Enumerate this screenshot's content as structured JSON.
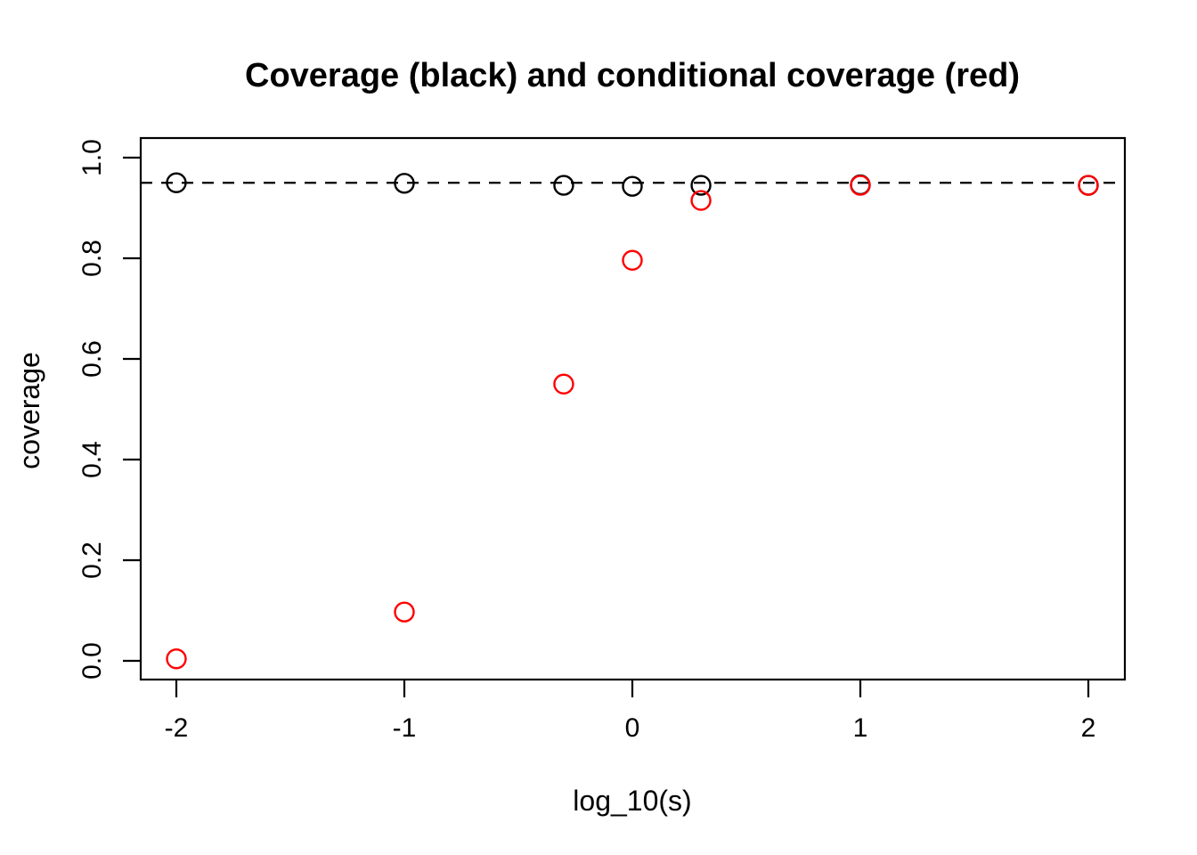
{
  "chart_data": {
    "type": "scatter",
    "title": "Coverage (black) and conditional coverage (red)",
    "xlabel": "log_10(s)",
    "ylabel": "coverage",
    "x_ticks": [
      {
        "label": "-2",
        "value": -2
      },
      {
        "label": "-1",
        "value": -1
      },
      {
        "label": "0",
        "value": 0
      },
      {
        "label": "1",
        "value": 1
      },
      {
        "label": "2",
        "value": 2
      }
    ],
    "y_ticks": [
      {
        "label": "0.0",
        "value": 0.0
      },
      {
        "label": "0.2",
        "value": 0.2
      },
      {
        "label": "0.4",
        "value": 0.4
      },
      {
        "label": "0.6",
        "value": 0.6
      },
      {
        "label": "0.8",
        "value": 0.8
      },
      {
        "label": "1.0",
        "value": 1.0
      }
    ],
    "xlim": [
      -2.16,
      2.16
    ],
    "ylim": [
      -0.04,
      1.04
    ],
    "grid": false,
    "legend_position": "none",
    "reference_line": {
      "y": 0.95,
      "style": "dashed",
      "color": "#000000"
    },
    "series": [
      {
        "name": "coverage",
        "color": "#000000",
        "marker": "open-circle",
        "x": [
          -2,
          -1,
          -0.301,
          0,
          0.301,
          1,
          2
        ],
        "y": [
          0.95,
          0.949,
          0.945,
          0.943,
          0.945,
          0.946,
          0.945
        ]
      },
      {
        "name": "conditional coverage",
        "color": "#FF0000",
        "marker": "open-circle",
        "x": [
          -2,
          -1,
          -0.301,
          0,
          0.301,
          1,
          2
        ],
        "y": [
          0.004,
          0.097,
          0.55,
          0.796,
          0.915,
          0.945,
          0.945
        ]
      }
    ],
    "colors": {
      "background": "#FFFFFF",
      "axis": "#000000",
      "coverage_series": "#000000",
      "conditional_series": "#FF0000"
    }
  }
}
